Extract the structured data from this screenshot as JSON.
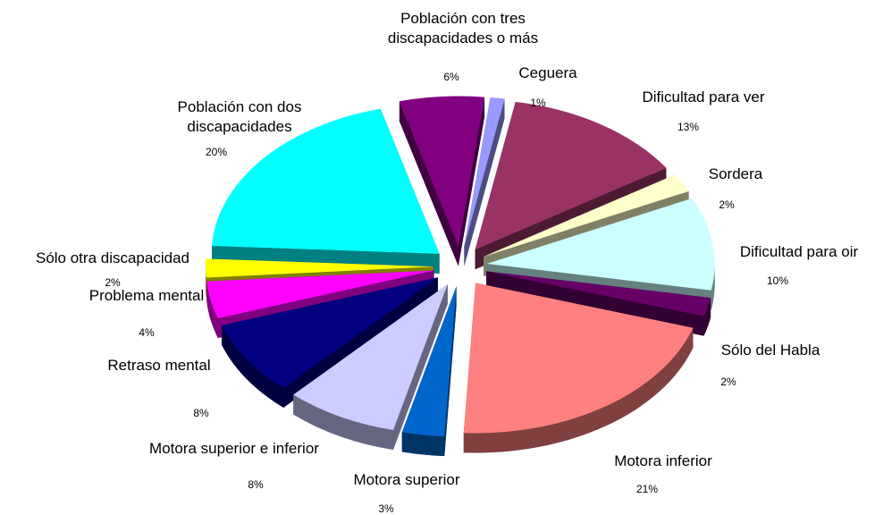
{
  "chart_data": {
    "type": "pie",
    "categories": [
      "Población con tres\ndiscapacidades o más",
      "Ceguera",
      "Dificultad para ver",
      "Sordera",
      "Dificultad para oir",
      "Sólo del Habla",
      "Motora inferior",
      "Motora superior",
      "Motora superior e inferior",
      "Retraso mental",
      "Problema mental",
      "Sólo otra discapacidad",
      "Población con dos\ndiscapacidades"
    ],
    "values": [
      6,
      1,
      13,
      2,
      10,
      2,
      21,
      3,
      8,
      8,
      4,
      2,
      20
    ],
    "value_labels": [
      "6%",
      "1%",
      "13%",
      "2%",
      "10%",
      "2%",
      "21%",
      "3%",
      "8%",
      "8%",
      "4%",
      "2%",
      "20%"
    ],
    "colors": [
      "#800080",
      "#9999ff",
      "#993366",
      "#ffffcc",
      "#ccffff",
      "#660066",
      "#ff8080",
      "#0066cc",
      "#ccccff",
      "#000080",
      "#ff00ff",
      "#ffff00",
      "#00ffff"
    ]
  }
}
